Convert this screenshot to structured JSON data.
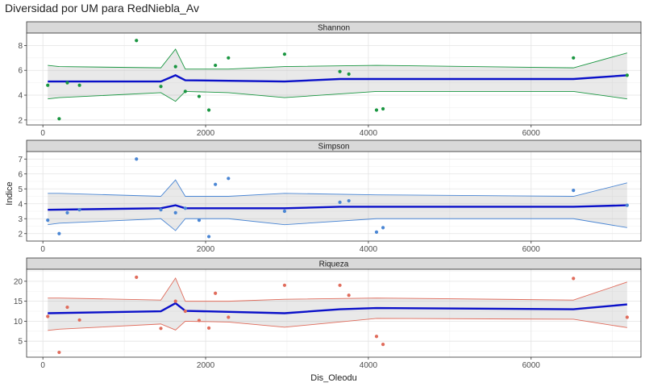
{
  "chart_data": {
    "type": "scatter",
    "title": "Diversidad por UM para RedNiebla_Av",
    "xlabel": "Dis_Oleodu",
    "ylabel": "Indice",
    "xlim": [
      -200,
      7350
    ],
    "xticks": [
      0,
      2000,
      4000,
      6000
    ],
    "grid": true,
    "facets": [
      {
        "name": "Shannon",
        "color": "#1a9641",
        "ylim": [
          1.6,
          9.0
        ],
        "yticks": [
          2,
          4,
          6,
          8
        ],
        "points": [
          [
            60,
            4.8
          ],
          [
            200,
            2.1
          ],
          [
            300,
            5.0
          ],
          [
            450,
            4.8
          ],
          [
            1150,
            8.4
          ],
          [
            1450,
            4.7
          ],
          [
            1630,
            6.3
          ],
          [
            1750,
            4.3
          ],
          [
            1920,
            3.9
          ],
          [
            2040,
            2.8
          ],
          [
            2120,
            6.4
          ],
          [
            2280,
            7.0
          ],
          [
            2970,
            7.3
          ],
          [
            3650,
            5.9
          ],
          [
            3760,
            5.7
          ],
          [
            4100,
            2.8
          ],
          [
            4180,
            2.9
          ],
          [
            6520,
            7.0
          ],
          [
            7180,
            5.6
          ]
        ],
        "fit": [
          [
            60,
            5.1
          ],
          [
            1450,
            5.1
          ],
          [
            1630,
            5.6
          ],
          [
            1750,
            5.2
          ],
          [
            2970,
            5.1
          ],
          [
            3650,
            5.3
          ],
          [
            4100,
            5.3
          ],
          [
            6520,
            5.3
          ],
          [
            7180,
            5.6
          ]
        ],
        "upper": [
          [
            60,
            6.4
          ],
          [
            200,
            6.3
          ],
          [
            1450,
            6.2
          ],
          [
            1630,
            7.7
          ],
          [
            1750,
            6.1
          ],
          [
            2280,
            6.1
          ],
          [
            2970,
            6.3
          ],
          [
            4100,
            6.4
          ],
          [
            6520,
            6.2
          ],
          [
            7180,
            7.4
          ]
        ],
        "lower": [
          [
            60,
            3.7
          ],
          [
            200,
            3.8
          ],
          [
            1450,
            4.2
          ],
          [
            1630,
            3.5
          ],
          [
            1750,
            4.3
          ],
          [
            2280,
            4.2
          ],
          [
            2970,
            3.8
          ],
          [
            4100,
            4.3
          ],
          [
            6520,
            4.3
          ],
          [
            7180,
            3.7
          ]
        ]
      },
      {
        "name": "Simpson",
        "color": "#4a86d4",
        "ylim": [
          1.5,
          7.5
        ],
        "yticks": [
          2,
          3,
          4,
          5,
          6,
          7
        ],
        "points": [
          [
            60,
            2.9
          ],
          [
            200,
            2.0
          ],
          [
            300,
            3.4
          ],
          [
            450,
            3.6
          ],
          [
            1150,
            7.0
          ],
          [
            1450,
            3.6
          ],
          [
            1630,
            3.4
          ],
          [
            1750,
            3.7
          ],
          [
            1920,
            2.9
          ],
          [
            2040,
            1.8
          ],
          [
            2120,
            5.3
          ],
          [
            2280,
            5.7
          ],
          [
            2970,
            3.5
          ],
          [
            3650,
            4.1
          ],
          [
            3760,
            4.2
          ],
          [
            4100,
            2.1
          ],
          [
            4180,
            2.4
          ],
          [
            6520,
            4.9
          ],
          [
            7180,
            3.9
          ]
        ],
        "fit": [
          [
            60,
            3.6
          ],
          [
            1450,
            3.7
          ],
          [
            1630,
            3.9
          ],
          [
            1750,
            3.7
          ],
          [
            2970,
            3.7
          ],
          [
            3650,
            3.8
          ],
          [
            4100,
            3.8
          ],
          [
            6520,
            3.8
          ],
          [
            7180,
            3.9
          ]
        ],
        "upper": [
          [
            60,
            4.7
          ],
          [
            200,
            4.7
          ],
          [
            1450,
            4.5
          ],
          [
            1630,
            5.6
          ],
          [
            1750,
            4.5
          ],
          [
            2280,
            4.5
          ],
          [
            2970,
            4.7
          ],
          [
            4100,
            4.6
          ],
          [
            6520,
            4.5
          ],
          [
            7180,
            5.4
          ]
        ],
        "lower": [
          [
            60,
            2.6
          ],
          [
            200,
            2.7
          ],
          [
            1450,
            3.0
          ],
          [
            1630,
            2.2
          ],
          [
            1750,
            3.0
          ],
          [
            2280,
            3.0
          ],
          [
            2970,
            2.6
          ],
          [
            4100,
            3.0
          ],
          [
            6520,
            3.0
          ],
          [
            7180,
            2.4
          ]
        ]
      },
      {
        "name": "Riqueza",
        "color": "#e06c5c",
        "ylim": [
          1.0,
          23.0
        ],
        "yticks": [
          5,
          10,
          15,
          20
        ],
        "points": [
          [
            60,
            11.2
          ],
          [
            200,
            2.2
          ],
          [
            300,
            13.5
          ],
          [
            450,
            10.3
          ],
          [
            1150,
            21.0
          ],
          [
            1450,
            8.2
          ],
          [
            1630,
            15.0
          ],
          [
            1750,
            12.5
          ],
          [
            1920,
            10.2
          ],
          [
            2040,
            8.3
          ],
          [
            2120,
            17.0
          ],
          [
            2280,
            11.0
          ],
          [
            2970,
            19.0
          ],
          [
            3650,
            19.0
          ],
          [
            3760,
            16.5
          ],
          [
            4100,
            6.2
          ],
          [
            4180,
            4.2
          ],
          [
            6520,
            20.7
          ],
          [
            7180,
            11.0
          ]
        ],
        "fit": [
          [
            60,
            12.0
          ],
          [
            1450,
            12.5
          ],
          [
            1630,
            14.5
          ],
          [
            1750,
            12.6
          ],
          [
            2970,
            12.0
          ],
          [
            3650,
            13.0
          ],
          [
            4100,
            13.3
          ],
          [
            6520,
            13.0
          ],
          [
            7180,
            14.2
          ]
        ],
        "upper": [
          [
            60,
            15.8
          ],
          [
            200,
            15.8
          ],
          [
            1450,
            15.3
          ],
          [
            1630,
            20.8
          ],
          [
            1750,
            15.0
          ],
          [
            2280,
            15.0
          ],
          [
            2970,
            15.5
          ],
          [
            4100,
            15.8
          ],
          [
            6520,
            15.3
          ],
          [
            7180,
            19.8
          ]
        ],
        "lower": [
          [
            60,
            7.7
          ],
          [
            200,
            8.0
          ],
          [
            1450,
            9.3
          ],
          [
            1630,
            7.8
          ],
          [
            1750,
            10.0
          ],
          [
            2280,
            9.8
          ],
          [
            2970,
            8.5
          ],
          [
            4100,
            10.7
          ],
          [
            6520,
            10.5
          ],
          [
            7180,
            8.4
          ]
        ]
      }
    ]
  }
}
